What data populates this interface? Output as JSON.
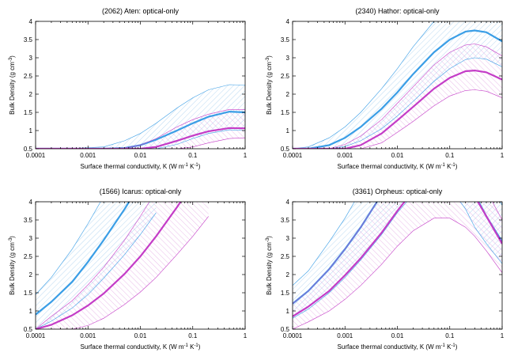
{
  "colors": {
    "blue": "#3a9ee6",
    "magenta": "#c43cc7",
    "blue_hatch": "#9cc8ec",
    "magenta_hatch": "#dfa0e0"
  },
  "axis_texts": {
    "xlabel": "Surface thermal conductivity, K (W m",
    "xlabel_sup1": "-1",
    "xlabel_mid": " K",
    "xlabel_sup2": "-1",
    "xlabel_end": ")",
    "ylabel": "Bulk Density (g cm",
    "ylabel_sup": "-3",
    "ylabel_end": ")"
  },
  "chart_data": [
    {
      "type": "area",
      "title": "(2062) Aten: optical-only",
      "xscale": "log",
      "xlim": [
        0.0001,
        1
      ],
      "ylim": [
        0.5,
        4
      ],
      "xticks": [
        "0.0001",
        "0.001",
        "0.01",
        "0.1",
        "1"
      ],
      "yticks": [
        "0.5",
        "1",
        "1.5",
        "2",
        "2.5",
        "3",
        "3.5",
        "4"
      ],
      "grid": false,
      "series": [
        {
          "color": "blue",
          "x": [
            0.0001,
            0.0004,
            0.002,
            0.005,
            0.01,
            0.02,
            0.05,
            0.1,
            0.2,
            0.5,
            1
          ],
          "mid": [
            0.5,
            0.5,
            0.5,
            0.52,
            0.6,
            0.75,
            1.0,
            1.2,
            1.38,
            1.52,
            1.5
          ],
          "lo": [
            0.5,
            0.5,
            0.5,
            0.5,
            0.5,
            0.5,
            0.62,
            0.78,
            0.92,
            1.02,
            1.0
          ],
          "hi": [
            0.5,
            0.5,
            0.55,
            0.72,
            0.92,
            1.2,
            1.62,
            1.9,
            2.12,
            2.26,
            2.25
          ]
        },
        {
          "color": "magenta",
          "x": [
            0.0001,
            0.001,
            0.005,
            0.01,
            0.02,
            0.05,
            0.1,
            0.2,
            0.5,
            1
          ],
          "mid": [
            0.5,
            0.5,
            0.5,
            0.5,
            0.55,
            0.72,
            0.86,
            0.98,
            1.07,
            1.06
          ],
          "lo": [
            0.5,
            0.5,
            0.5,
            0.5,
            0.5,
            0.5,
            0.55,
            0.66,
            0.78,
            0.8
          ],
          "hi": [
            0.5,
            0.5,
            0.52,
            0.6,
            0.78,
            1.1,
            1.3,
            1.45,
            1.58,
            1.58
          ]
        }
      ]
    },
    {
      "type": "area",
      "title": "(2340) Hathor: optical-only",
      "xscale": "log",
      "xlim": [
        0.0001,
        1
      ],
      "ylim": [
        0.5,
        4
      ],
      "xticks": [
        "0.0001",
        "0.001",
        "0.01",
        "0.1",
        "1"
      ],
      "yticks": [
        "0.5",
        "1",
        "1.5",
        "2",
        "2.5",
        "3",
        "3.5",
        "4"
      ],
      "grid": false,
      "series": [
        {
          "color": "blue",
          "x": [
            0.0001,
            0.0002,
            0.0005,
            0.001,
            0.002,
            0.005,
            0.01,
            0.02,
            0.05,
            0.1,
            0.2,
            0.3,
            0.5,
            1
          ],
          "mid": [
            0.5,
            0.5,
            0.6,
            0.8,
            1.1,
            1.6,
            2.05,
            2.55,
            3.15,
            3.5,
            3.72,
            3.75,
            3.7,
            3.45
          ],
          "lo": [
            0.5,
            0.5,
            0.5,
            0.56,
            0.72,
            1.05,
            1.4,
            1.8,
            2.35,
            2.7,
            2.95,
            3.0,
            2.96,
            2.75
          ],
          "hi": [
            0.5,
            0.55,
            0.8,
            1.1,
            1.5,
            2.15,
            2.7,
            3.3,
            4.0,
            4.4,
            4.6,
            4.6,
            4.5,
            4.2
          ]
        },
        {
          "color": "magenta",
          "x": [
            0.0001,
            0.0005,
            0.001,
            0.002,
            0.005,
            0.01,
            0.02,
            0.05,
            0.1,
            0.2,
            0.3,
            0.5,
            1
          ],
          "mid": [
            0.5,
            0.5,
            0.5,
            0.6,
            0.92,
            1.28,
            1.65,
            2.15,
            2.45,
            2.63,
            2.65,
            2.6,
            2.4
          ],
          "lo": [
            0.5,
            0.5,
            0.5,
            0.5,
            0.66,
            0.95,
            1.25,
            1.68,
            1.95,
            2.1,
            2.12,
            2.08,
            1.9
          ],
          "hi": [
            0.5,
            0.5,
            0.62,
            0.85,
            1.3,
            1.75,
            2.2,
            2.8,
            3.15,
            3.35,
            3.38,
            3.3,
            3.05
          ]
        }
      ]
    },
    {
      "type": "area",
      "title": "(1566) Icarus: optical-only",
      "xscale": "log",
      "xlim": [
        0.0001,
        1
      ],
      "ylim": [
        0.5,
        4
      ],
      "xticks": [
        "0.0001",
        "0.001",
        "0.01",
        "0.1",
        "1"
      ],
      "yticks": [
        "0.5",
        "1",
        "1.5",
        "2",
        "2.5",
        "3",
        "3.5",
        "4"
      ],
      "grid": false,
      "series": [
        {
          "color": "blue",
          "x": [
            0.0001,
            0.0002,
            0.0005,
            0.001,
            0.002,
            0.005,
            0.01,
            0.02
          ],
          "mid": [
            0.9,
            1.25,
            1.8,
            2.35,
            2.95,
            3.8,
            4.5,
            5.2
          ],
          "lo": [
            0.5,
            0.72,
            1.08,
            1.45,
            1.9,
            2.55,
            3.1,
            3.7
          ],
          "hi": [
            1.45,
            1.92,
            2.7,
            3.4,
            4.15,
            5.2,
            6.0,
            6.8
          ]
        },
        {
          "color": "magenta",
          "x": [
            0.0001,
            0.0002,
            0.0005,
            0.001,
            0.002,
            0.005,
            0.01,
            0.02,
            0.05,
            0.1,
            0.2
          ],
          "mid": [
            0.5,
            0.62,
            0.88,
            1.15,
            1.48,
            2.02,
            2.5,
            3.05,
            3.85,
            4.5,
            5.2
          ],
          "lo": [
            0.5,
            0.5,
            0.5,
            0.6,
            0.8,
            1.18,
            1.52,
            1.92,
            2.55,
            3.05,
            3.6
          ],
          "hi": [
            0.5,
            0.85,
            1.28,
            1.72,
            2.2,
            2.95,
            3.6,
            4.3,
            5.3,
            6.1,
            6.9
          ]
        }
      ]
    },
    {
      "type": "area",
      "title": "(3361) Orpheus: optical-only",
      "xscale": "log",
      "xlim": [
        0.0001,
        1
      ],
      "ylim": [
        0.5,
        4
      ],
      "xticks": [
        "0.0001",
        "0.001",
        "0.01",
        "0.1",
        "1"
      ],
      "yticks": [
        "0.5",
        "1",
        "1.5",
        "2",
        "2.5",
        "3",
        "3.5",
        "4"
      ],
      "grid": false,
      "series": [
        {
          "color": "blue",
          "x": [
            0.0001,
            0.0002,
            0.0005,
            0.001,
            0.002,
            0.005,
            0.01,
            0.02,
            0.05,
            0.1,
            0.2,
            0.3,
            0.5,
            1
          ],
          "mid": [
            1.2,
            1.55,
            2.15,
            2.7,
            3.3,
            4.2,
            4.9,
            5.5,
            5.9,
            5.6,
            4.8,
            4.2,
            3.6,
            2.9
          ],
          "lo": [
            0.8,
            1.05,
            1.5,
            1.92,
            2.4,
            3.1,
            3.7,
            4.2,
            4.6,
            4.4,
            3.8,
            3.3,
            2.85,
            2.3
          ],
          "hi": [
            1.7,
            2.1,
            2.9,
            3.55,
            4.3,
            5.4,
            6.2,
            6.9,
            7.4,
            7.1,
            6.2,
            5.5,
            4.8,
            3.9
          ]
        },
        {
          "color": "magenta",
          "x": [
            0.0001,
            0.0002,
            0.0005,
            0.001,
            0.002,
            0.005,
            0.01,
            0.02,
            0.05,
            0.1,
            0.2,
            0.3,
            0.5,
            1
          ],
          "mid": [
            0.85,
            1.12,
            1.55,
            1.98,
            2.45,
            3.15,
            3.75,
            4.3,
            4.8,
            4.85,
            4.5,
            4.15,
            3.6,
            2.85
          ],
          "lo": [
            0.5,
            0.7,
            1.0,
            1.32,
            1.7,
            2.28,
            2.78,
            3.2,
            3.55,
            3.55,
            3.3,
            3.05,
            2.65,
            2.05
          ],
          "hi": [
            1.2,
            1.55,
            2.15,
            2.7,
            3.3,
            4.2,
            4.9,
            5.5,
            5.9,
            5.8,
            5.3,
            4.9,
            4.3,
            3.5
          ]
        }
      ]
    }
  ]
}
